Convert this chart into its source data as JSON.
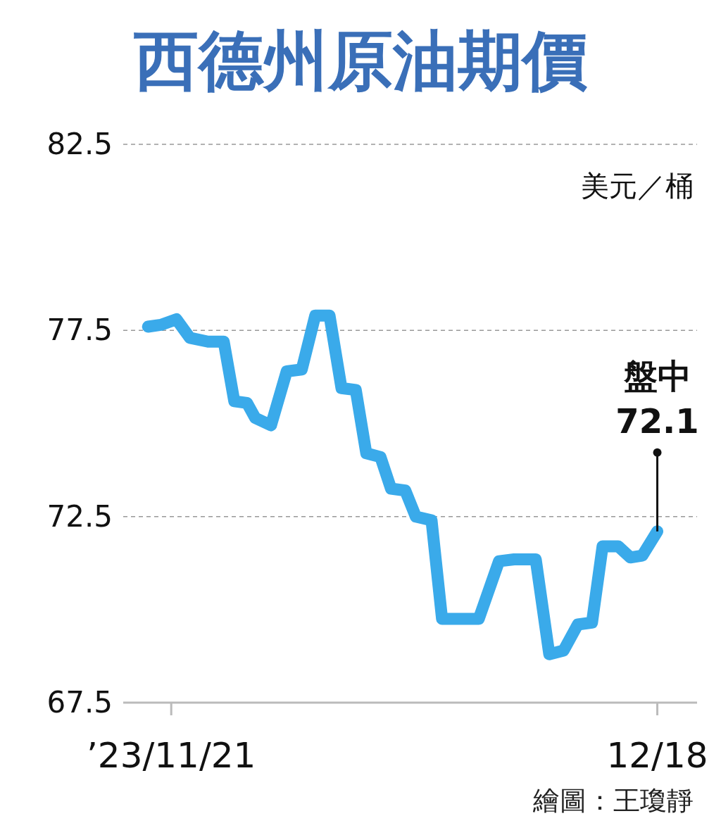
{
  "chart_data": {
    "type": "line",
    "title": "西德州原油期價",
    "ylabel": "美元／桶",
    "x": [
      "2023-11-19T17:00",
      "2023-11-20T10:00",
      "2023-11-21T07:00",
      "2023-11-22T01:00",
      "2023-11-23T01:00",
      "2023-11-23T22:00",
      "2023-11-24T12:00",
      "2023-11-25T05:00",
      "2023-11-25T16:00",
      "2023-11-26T13:00",
      "2023-11-27T10:00",
      "2023-11-28T06:00",
      "2023-11-29T00:00",
      "2023-11-29T19:00",
      "2023-11-30T11:00",
      "2023-12-01T06:00",
      "2023-12-01T20:00",
      "2023-12-02T15:00",
      "2023-12-03T05:00",
      "2023-12-04T00:00",
      "2023-12-04T14:00",
      "2023-12-05T11:00",
      "2023-12-06T01:00",
      "2023-12-08T02:00",
      "2023-12-09T05:00",
      "2023-12-10T01:00",
      "2023-12-11T06:00",
      "2023-12-12T00:00",
      "2023-12-12T19:00",
      "2023-12-13T14:00",
      "2023-12-14T09:00",
      "2023-12-14T23:00",
      "2023-12-15T20:00",
      "2023-12-16T12:00",
      "2023-12-17T04:00",
      "2023-12-18T00:00"
    ],
    "series": [
      {
        "color": "#3aaaea",
        "values": [
          77.6,
          77.65,
          77.8,
          77.3,
          77.2,
          77.2,
          75.6,
          75.55,
          75.15,
          74.95,
          76.4,
          76.45,
          77.9,
          77.9,
          75.95,
          75.9,
          74.2,
          74.1,
          73.25,
          73.2,
          72.5,
          72.4,
          69.75,
          69.75,
          71.3,
          71.35,
          71.35,
          68.8,
          68.9,
          69.6,
          69.65,
          71.7,
          71.7,
          71.4,
          71.45,
          72.1
        ]
      }
    ],
    "xlim": [
      "2023-11-18T08:00",
      "2023-12-20T05:00"
    ],
    "xticks": [
      {
        "value": "2023-11-21",
        "label": "’23/11/21"
      },
      {
        "value": "2023-12-18",
        "label": "12/18"
      }
    ],
    "ylim": [
      67.5,
      82.5
    ],
    "yticks": [
      67.5,
      72.5,
      77.5,
      82.5
    ],
    "grid": "y",
    "annotations": [
      {
        "text": "盤中\n72.1",
        "x": "2023-12-18",
        "y": 72.1
      },
      "繪圖：王瓊靜"
    ]
  }
}
